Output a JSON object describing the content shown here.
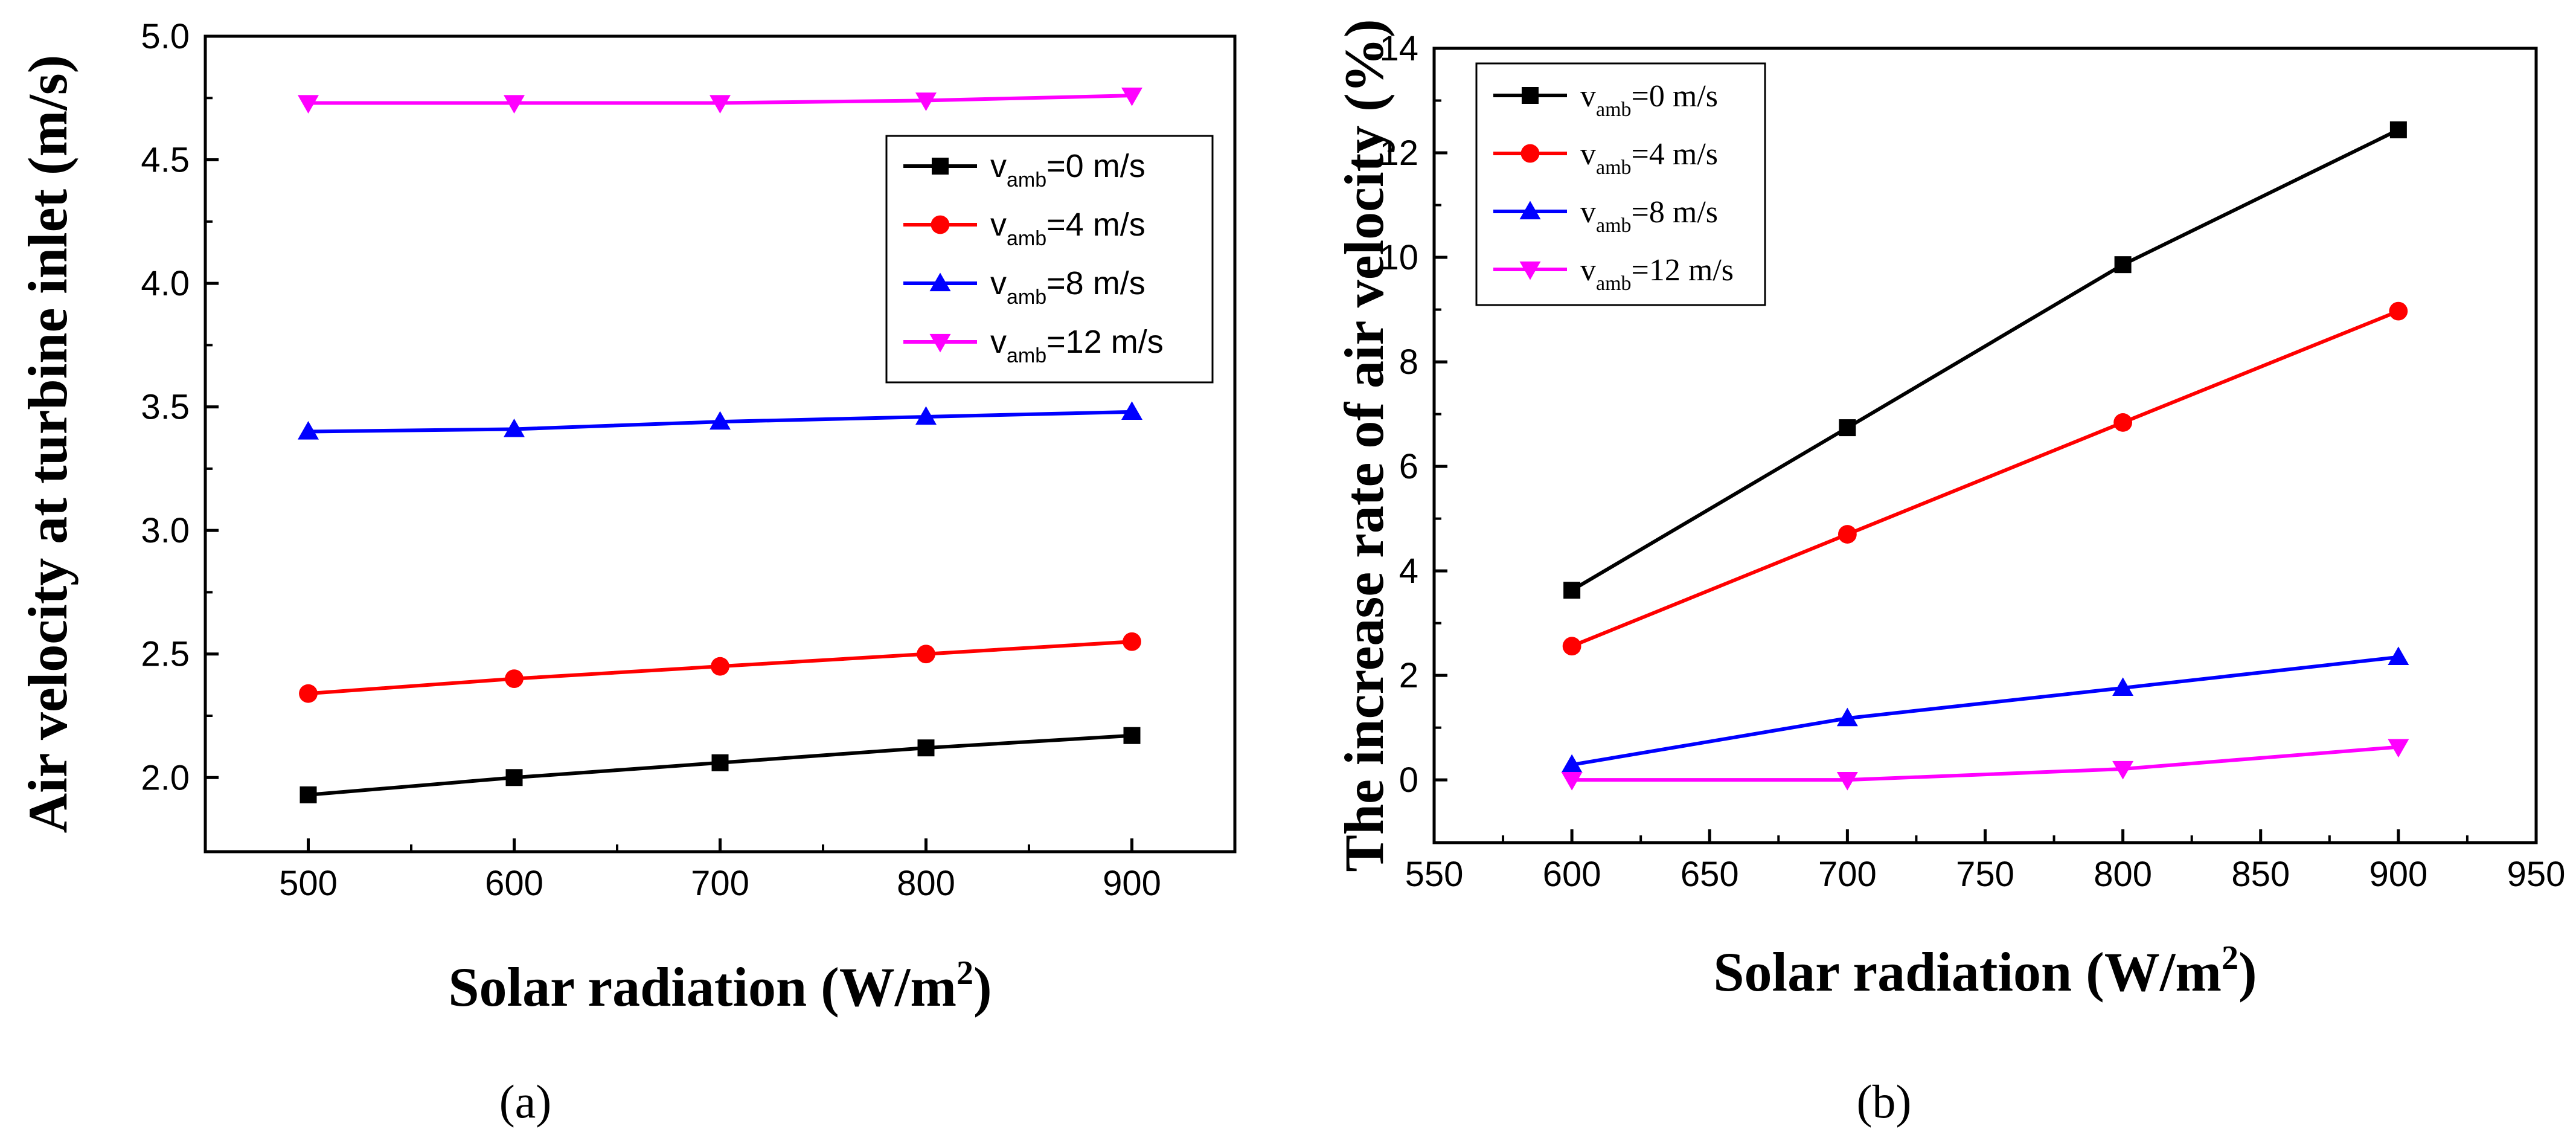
{
  "chart_data": [
    {
      "type": "line",
      "caption": "(a)",
      "x": [
        500,
        600,
        700,
        800,
        900
      ],
      "xlim": [
        450,
        950
      ],
      "ylim": [
        1.7,
        5.0
      ],
      "xticks": [
        500,
        600,
        700,
        800,
        900
      ],
      "yticks": [
        2.0,
        2.5,
        3.0,
        3.5,
        4.0,
        4.5,
        5.0
      ],
      "xtick_labels": [
        "500",
        "600",
        "700",
        "800",
        "900"
      ],
      "ytick_labels": [
        "2.0",
        "2.5",
        "3.0",
        "3.5",
        "4.0",
        "4.5",
        "5.0"
      ],
      "xlabel": "Solar radiation (W/m",
      "xlabel_sup": "2",
      "xlabel_end": ")",
      "ylabel": "Air velocity at turbine inlet (m/s)",
      "legend_position": "upper-right",
      "series": [
        {
          "name": "v",
          "sub": "amb",
          "rest": "=0 m/s",
          "color": "#000000",
          "marker": "square",
          "values": [
            1.93,
            2.0,
            2.06,
            2.12,
            2.17
          ]
        },
        {
          "name": "v",
          "sub": "amb",
          "rest": "=4 m/s",
          "color": "#ff0000",
          "marker": "circle",
          "values": [
            2.34,
            2.4,
            2.45,
            2.5,
            2.55
          ]
        },
        {
          "name": "v",
          "sub": "amb",
          "rest": "=8 m/s",
          "color": "#0000ff",
          "marker": "triangle-up",
          "values": [
            3.4,
            3.41,
            3.44,
            3.46,
            3.48
          ]
        },
        {
          "name": "v",
          "sub": "amb",
          "rest": "=12 m/s",
          "color": "#ff00ff",
          "marker": "triangle-down",
          "values": [
            4.73,
            4.73,
            4.73,
            4.74,
            4.76
          ]
        }
      ]
    },
    {
      "type": "line",
      "caption": "(b)",
      "x": [
        600,
        700,
        800,
        900
      ],
      "xlim": [
        550,
        950
      ],
      "ylim": [
        -1.2,
        14
      ],
      "xticks": [
        550,
        600,
        650,
        700,
        750,
        800,
        850,
        900,
        950
      ],
      "yticks": [
        0,
        2,
        4,
        6,
        8,
        10,
        12,
        14
      ],
      "xtick_labels": [
        "550",
        "600",
        "650",
        "700",
        "750",
        "800",
        "850",
        "900",
        "950"
      ],
      "ytick_labels": [
        "0",
        "2",
        "4",
        "6",
        "8",
        "10",
        "12",
        "14"
      ],
      "xlabel": "Solar radiation (W/m",
      "xlabel_sup": "2",
      "xlabel_end": ")",
      "ylabel": "The increase rate of air velocity  (%)",
      "legend_position": "upper-left",
      "series": [
        {
          "name": "v",
          "sub": "amb",
          "rest": "=0 m/s",
          "color": "#000000",
          "marker": "square",
          "values": [
            3.63,
            6.74,
            9.86,
            12.44
          ]
        },
        {
          "name": "v",
          "sub": "amb",
          "rest": "=4 m/s",
          "color": "#ff0000",
          "marker": "circle",
          "values": [
            2.56,
            4.7,
            6.84,
            8.97
          ]
        },
        {
          "name": "v",
          "sub": "amb",
          "rest": "=8 m/s",
          "color": "#0000ff",
          "marker": "triangle-up",
          "values": [
            0.29,
            1.18,
            1.76,
            2.35
          ]
        },
        {
          "name": "v",
          "sub": "amb",
          "rest": "=12 m/s",
          "color": "#ff00ff",
          "marker": "triangle-down",
          "values": [
            0.0,
            0.0,
            0.21,
            0.63
          ]
        }
      ]
    }
  ]
}
